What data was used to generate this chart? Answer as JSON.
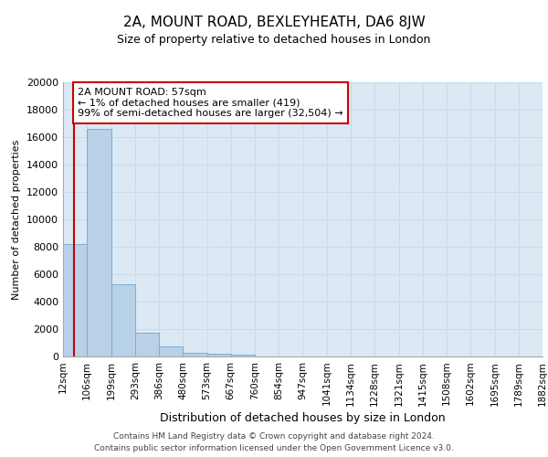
{
  "title": "2A, MOUNT ROAD, BEXLEYHEATH, DA6 8JW",
  "subtitle": "Size of property relative to detached houses in London",
  "xlabel": "Distribution of detached houses by size in London",
  "ylabel": "Number of detached properties",
  "bar_values": [
    8200,
    16600,
    5300,
    1750,
    750,
    300,
    200,
    150,
    0,
    0,
    0,
    0,
    0,
    0,
    0,
    0,
    0,
    0,
    0,
    0
  ],
  "tick_labels": [
    "12sqm",
    "106sqm",
    "199sqm",
    "293sqm",
    "386sqm",
    "480sqm",
    "573sqm",
    "667sqm",
    "760sqm",
    "854sqm",
    "947sqm",
    "1041sqm",
    "1134sqm",
    "1228sqm",
    "1321sqm",
    "1415sqm",
    "1508sqm",
    "1602sqm",
    "1695sqm",
    "1789sqm",
    "1882sqm"
  ],
  "bar_color": "#b8d0e8",
  "bar_edge_color": "#7aadd4",
  "property_line_color": "#cc0000",
  "property_line_x": 0.47,
  "annotation_text": "2A MOUNT ROAD: 57sqm\n← 1% of detached houses are smaller (419)\n99% of semi-detached houses are larger (32,504) →",
  "annotation_box_facecolor": "#ffffff",
  "annotation_box_edgecolor": "#cc0000",
  "ylim": [
    0,
    20000
  ],
  "yticks": [
    0,
    2000,
    4000,
    6000,
    8000,
    10000,
    12000,
    14000,
    16000,
    18000,
    20000
  ],
  "grid_color": "#c8dced",
  "bg_color": "#dce9f5",
  "title_fontsize": 11,
  "subtitle_fontsize": 9,
  "ylabel_fontsize": 8,
  "xlabel_fontsize": 9,
  "tick_fontsize": 7.5,
  "ytick_fontsize": 8,
  "annotation_fontsize": 8,
  "footer_line1": "Contains HM Land Registry data © Crown copyright and database right 2024.",
  "footer_line2": "Contains public sector information licensed under the Open Government Licence v3.0."
}
